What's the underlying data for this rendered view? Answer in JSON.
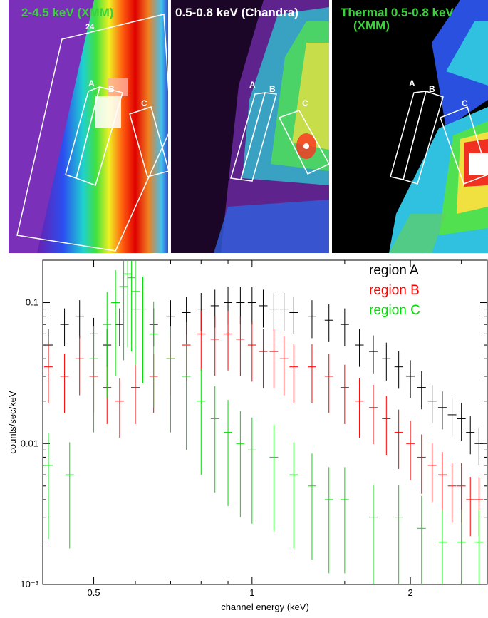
{
  "panels": [
    {
      "title": "2-4.5 keV (XMM)",
      "title_color": "#3cd03c",
      "extra_label": "24",
      "region_labels": [
        "A",
        "B",
        "C"
      ]
    },
    {
      "title": "0.5-0.8 keV (Chandra)",
      "title_color": "#ffffff",
      "region_labels": [
        "A",
        "B",
        "C"
      ]
    },
    {
      "title": "Thermal 0.5-0.8 keV",
      "title_line2": "(XMM)",
      "title_color": "#3cd03c",
      "region_labels": [
        "A",
        "B",
        "C"
      ]
    }
  ],
  "chart_data": {
    "type": "scatter",
    "xlabel": "channel energy (keV)",
    "ylabel": "counts/sec/keV",
    "x_scale": "log",
    "y_scale": "log",
    "xlim": [
      0.4,
      2.8
    ],
    "ylim": [
      0.001,
      0.2
    ],
    "x_ticks": [
      "0.5",
      "1",
      "2"
    ],
    "y_ticks": [
      "0.1",
      "0.01",
      "10⁻³"
    ],
    "legend_position": "top-right",
    "series": [
      {
        "name": "region A",
        "color": "#000000",
        "x": [
          0.41,
          0.44,
          0.47,
          0.5,
          0.53,
          0.56,
          0.6,
          0.65,
          0.7,
          0.75,
          0.8,
          0.85,
          0.9,
          0.95,
          1.0,
          1.05,
          1.1,
          1.15,
          1.2,
          1.3,
          1.4,
          1.5,
          1.6,
          1.7,
          1.8,
          1.9,
          2.0,
          2.1,
          2.2,
          2.3,
          2.4,
          2.5,
          2.6,
          2.7
        ],
        "y": [
          0.05,
          0.07,
          0.08,
          0.06,
          0.05,
          0.07,
          0.09,
          0.07,
          0.08,
          0.085,
          0.09,
          0.095,
          0.1,
          0.1,
          0.1,
          0.095,
          0.09,
          0.09,
          0.085,
          0.08,
          0.075,
          0.07,
          0.05,
          0.045,
          0.04,
          0.035,
          0.03,
          0.025,
          0.02,
          0.018,
          0.016,
          0.015,
          0.012,
          0.01
        ]
      },
      {
        "name": "region B",
        "color": "#ff0000",
        "x": [
          0.41,
          0.44,
          0.47,
          0.5,
          0.53,
          0.56,
          0.6,
          0.65,
          0.7,
          0.75,
          0.8,
          0.85,
          0.9,
          0.95,
          1.0,
          1.05,
          1.1,
          1.15,
          1.2,
          1.3,
          1.4,
          1.5,
          1.6,
          1.7,
          1.8,
          1.9,
          2.0,
          2.1,
          2.2,
          2.3,
          2.4,
          2.5,
          2.6,
          2.7
        ],
        "y": [
          0.035,
          0.03,
          0.04,
          0.03,
          0.025,
          0.02,
          0.025,
          0.03,
          0.04,
          0.05,
          0.06,
          0.055,
          0.06,
          0.055,
          0.05,
          0.045,
          0.045,
          0.04,
          0.035,
          0.035,
          0.03,
          0.025,
          0.02,
          0.018,
          0.015,
          0.012,
          0.01,
          0.008,
          0.007,
          0.006,
          0.005,
          0.005,
          0.004,
          0.004
        ]
      },
      {
        "name": "region C",
        "color": "#00dd00",
        "x": [
          0.41,
          0.45,
          0.5,
          0.53,
          0.55,
          0.57,
          0.58,
          0.59,
          0.6,
          0.62,
          0.65,
          0.7,
          0.75,
          0.8,
          0.85,
          0.9,
          0.95,
          1.0,
          1.1,
          1.2,
          1.3,
          1.4,
          1.5,
          1.7,
          1.9,
          2.1,
          2.3,
          2.5,
          2.7
        ],
        "y": [
          0.007,
          0.006,
          0.04,
          0.07,
          0.1,
          0.13,
          0.16,
          0.15,
          0.12,
          0.09,
          0.06,
          0.04,
          0.03,
          0.02,
          0.015,
          0.012,
          0.01,
          0.009,
          0.008,
          0.006,
          0.005,
          0.004,
          0.004,
          0.003,
          0.003,
          0.0025,
          0.002,
          0.002,
          0.002
        ]
      }
    ]
  }
}
